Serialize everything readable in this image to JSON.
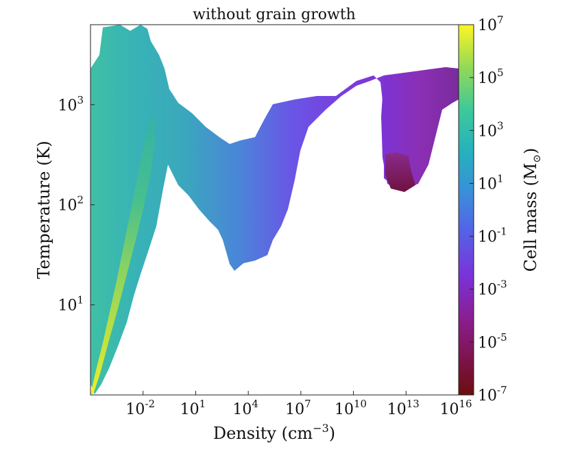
{
  "chart_data": {
    "type": "heatmap",
    "title": "without grain growth",
    "xlabel": "Density (cm",
    "xlabel_sup": "−3",
    "xlabel_suffix": ")",
    "ylabel": "Temperature (K)",
    "colorbar_label": "Cell mass (M",
    "colorbar_label_suffix": ")",
    "colorbar_label_symbol": "⊙",
    "colormap": "viridis",
    "x_scale": "log",
    "y_scale": "log",
    "xlim_log10": [
      -5,
      16
    ],
    "ylim_log10": [
      0.1,
      3.8
    ],
    "clim_log10": [
      -7,
      7
    ],
    "x_ticks": [
      {
        "base": "10",
        "exp": "-2",
        "value": -2
      },
      {
        "base": "10",
        "exp": "1",
        "value": 1
      },
      {
        "base": "10",
        "exp": "4",
        "value": 4
      },
      {
        "base": "10",
        "exp": "7",
        "value": 7
      },
      {
        "base": "10",
        "exp": "10",
        "value": 10
      },
      {
        "base": "10",
        "exp": "13",
        "value": 13
      },
      {
        "base": "10",
        "exp": "16",
        "value": 16
      }
    ],
    "y_ticks": [
      {
        "base": "10",
        "exp": "1",
        "value": 1
      },
      {
        "base": "10",
        "exp": "2",
        "value": 2
      },
      {
        "base": "10",
        "exp": "3",
        "value": 3
      }
    ],
    "colorbar_ticks": [
      {
        "base": "10",
        "exp": "7",
        "value": 7
      },
      {
        "base": "10",
        "exp": "5",
        "value": 5
      },
      {
        "base": "10",
        "exp": "3",
        "value": 3
      },
      {
        "base": "10",
        "exp": "1",
        "value": 1
      },
      {
        "base": "10",
        "exp": "-1",
        "value": -1
      },
      {
        "base": "10",
        "exp": "-3",
        "value": -3
      },
      {
        "base": "10",
        "exp": "-5",
        "value": -5
      },
      {
        "base": "10",
        "exp": "-7",
        "value": -7
      }
    ],
    "regions": [
      {
        "x_log10": [
          -5.0,
          -3.4
        ],
        "y_log10": [
          0.1,
          3.6
        ],
        "cell_mass_log10": 4.5
      },
      {
        "x_log10": [
          -3.4,
          0.5
        ],
        "y_log10": [
          0.8,
          3.7
        ],
        "cell_mass_log10": 2.0
      },
      {
        "x_log10": [
          0.5,
          5.0
        ],
        "y_log10": [
          1.3,
          3.2
        ],
        "cell_mass_log10": 0.0
      },
      {
        "x_log10": [
          5.0,
          9.0
        ],
        "y_log10": [
          1.4,
          3.2
        ],
        "cell_mass_log10": -2.0
      },
      {
        "x_log10": [
          9.0,
          12.0
        ],
        "y_log10": [
          2.9,
          3.3
        ],
        "cell_mass_log10": -2.5
      },
      {
        "x_log10": [
          12.0,
          16.0
        ],
        "y_log10": [
          2.1,
          3.3
        ],
        "cell_mass_log10": -3.5
      },
      {
        "x_log10": [
          11.8,
          13.0
        ],
        "y_log10": [
          2.2,
          2.5
        ],
        "cell_mass_log10": -5.5
      }
    ]
  }
}
